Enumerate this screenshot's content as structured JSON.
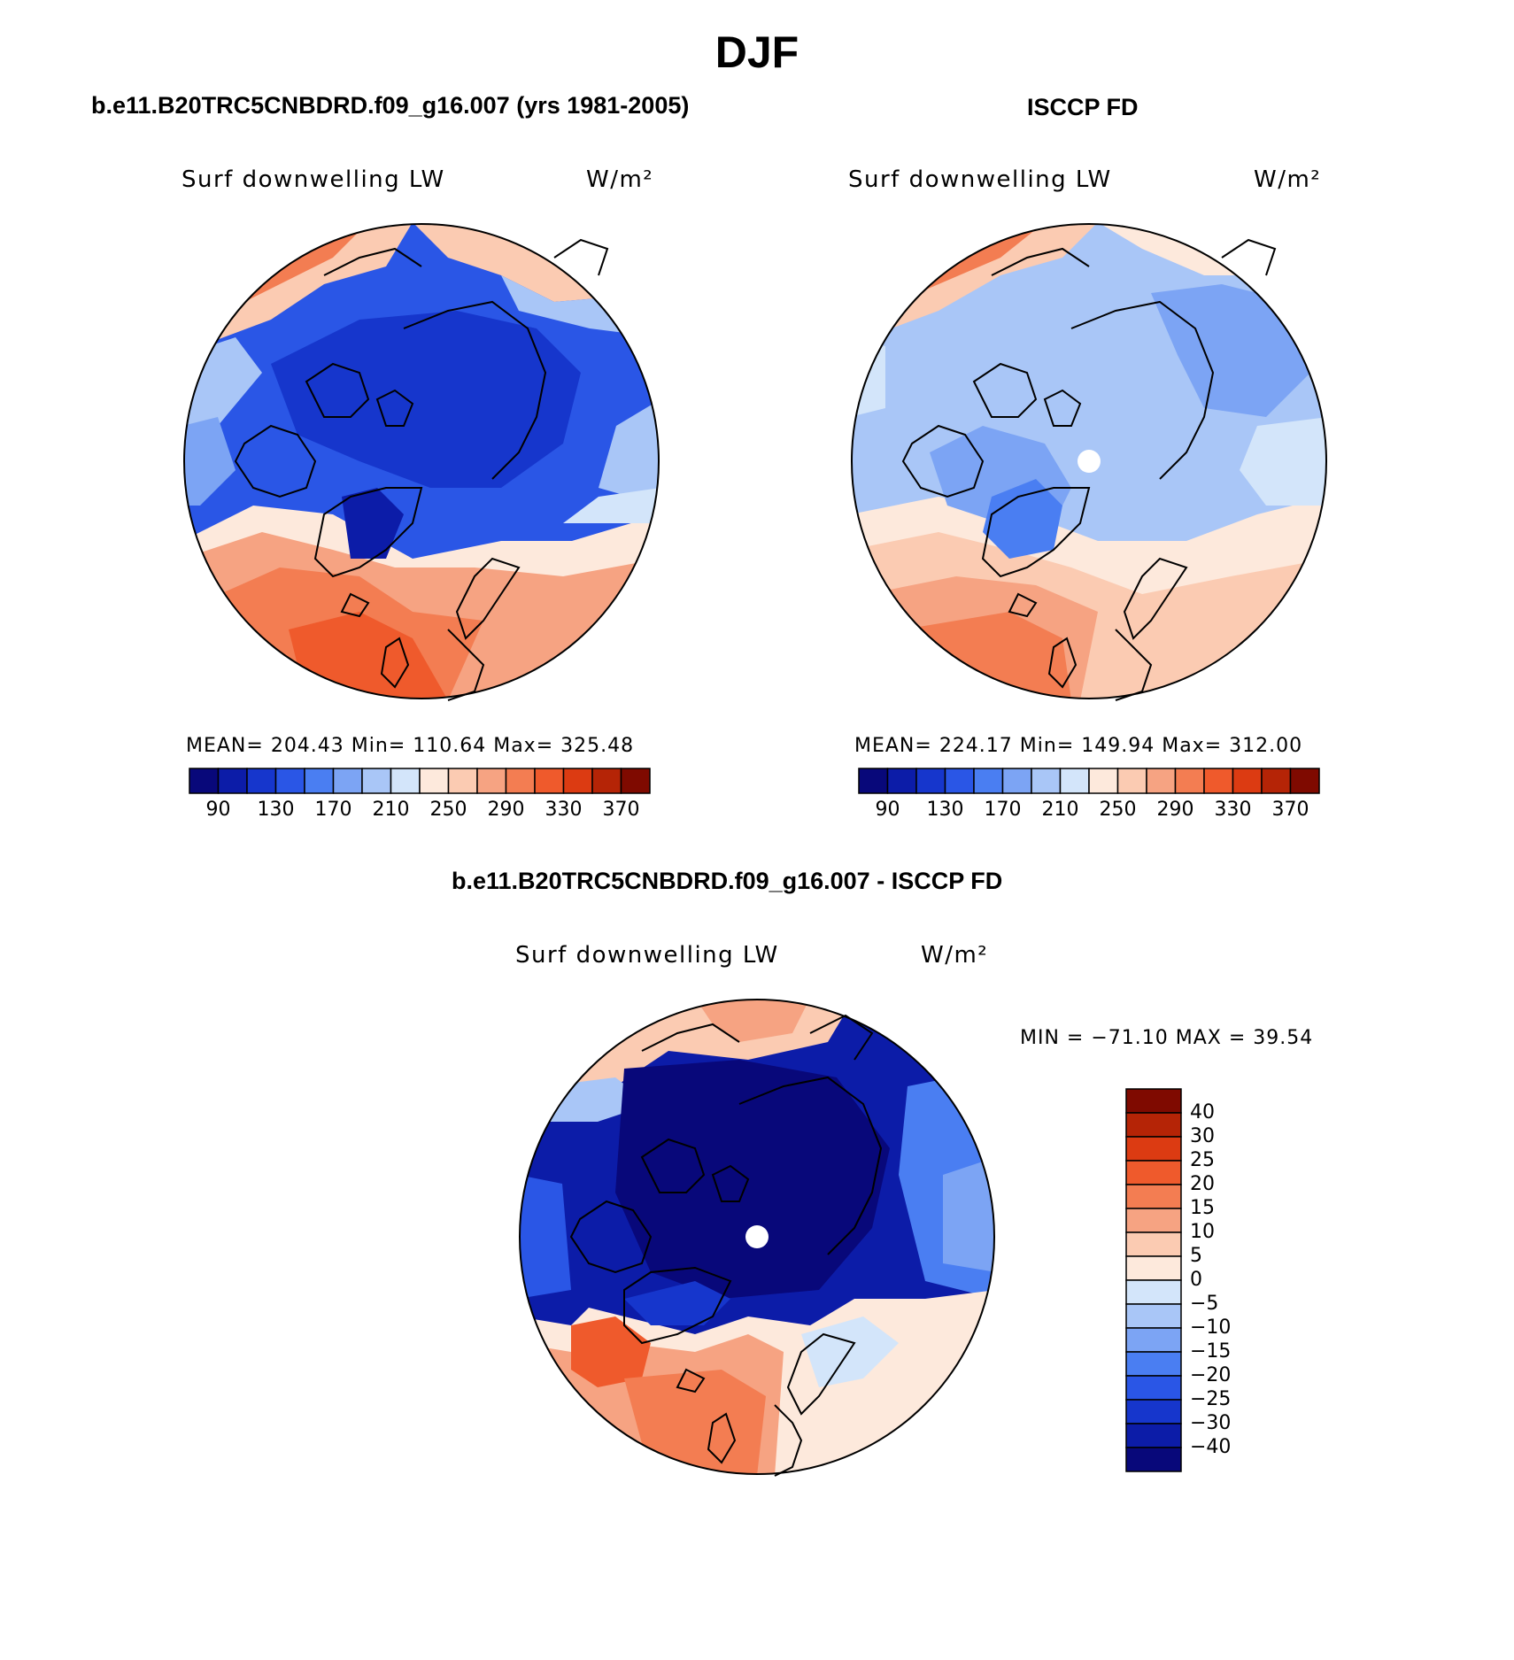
{
  "title": "DJF",
  "panels": {
    "model": {
      "title": "b.e11.B20TRC5CNBDRD.f09_g16.007 (yrs 1981-2005)",
      "variable": "Surf downwelling LW",
      "units": "W/m²",
      "stats": "MEAN= 204.43   Min= 110.64   Max= 325.48"
    },
    "obs": {
      "title": "ISCCP FD",
      "variable": "Surf downwelling LW",
      "units": "W/m²",
      "stats": "MEAN= 224.17   Min= 149.94   Max= 312.00"
    },
    "diff": {
      "title": "b.e11.B20TRC5CNBDRD.f09_g16.007 - ISCCP FD",
      "variable": "Surf downwelling LW",
      "units": "W/m²",
      "stats": "MIN = −71.10 MAX =  39.54"
    }
  },
  "colorbar_abs": {
    "labels": [
      "90",
      "130",
      "170",
      "210",
      "250",
      "290",
      "330",
      "370"
    ],
    "colors": [
      "#08087a",
      "#0c1ca8",
      "#1636cc",
      "#2a56e6",
      "#4a7ef2",
      "#7ca4f4",
      "#a9c6f7",
      "#d3e5fa",
      "#fde9dc",
      "#fbcbb2",
      "#f6a382",
      "#f37d52",
      "#ef5a2c",
      "#dc3b12",
      "#b52406",
      "#7f0a00"
    ]
  },
  "colorbar_diff": {
    "labels": [
      "40",
      "30",
      "25",
      "20",
      "15",
      "10",
      "5",
      "0",
      "−5",
      "−10",
      "−15",
      "−20",
      "−25",
      "−30",
      "−40"
    ],
    "colors": [
      "#7f0a00",
      "#b52406",
      "#dc3b12",
      "#ef5a2c",
      "#f37d52",
      "#f6a382",
      "#fbcbb2",
      "#fde9dc",
      "#d3e5fa",
      "#a9c6f7",
      "#7ca4f4",
      "#4a7ef2",
      "#2a56e6",
      "#1636cc",
      "#0c1ca8",
      "#08087a"
    ]
  }
}
